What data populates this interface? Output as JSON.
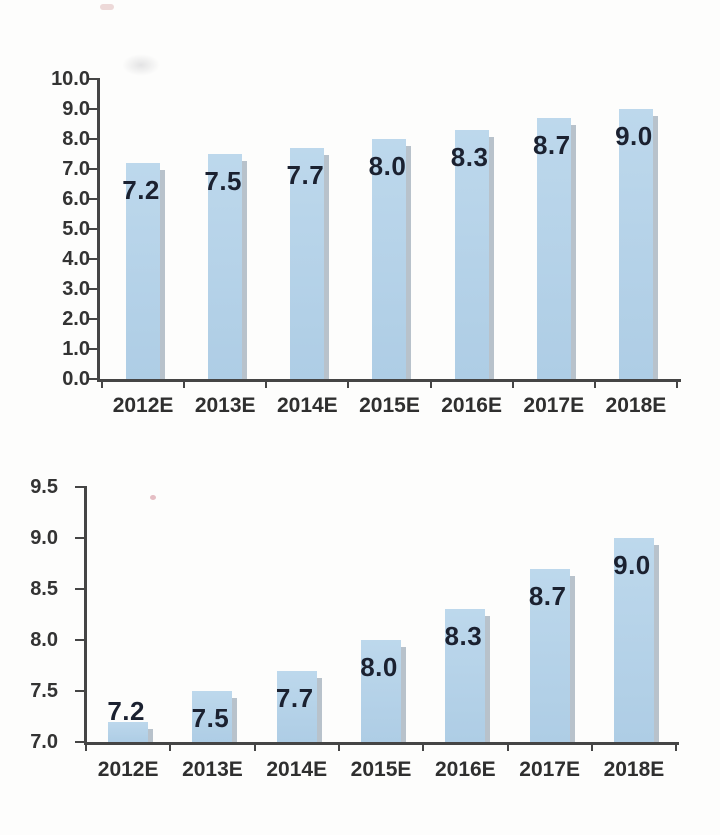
{
  "page": {
    "background": "#fdfdfc"
  },
  "chart_data": [
    {
      "type": "bar",
      "title": "",
      "categories": [
        "2012E",
        "2013E",
        "2014E",
        "2015E",
        "2016E",
        "2017E",
        "2018E"
      ],
      "values": [
        7.2,
        7.5,
        7.7,
        8.0,
        8.3,
        8.7,
        9.0
      ],
      "data_labels": [
        "7.2",
        "7.5",
        "7.7",
        "8.0",
        "8.3",
        "8.7",
        "9.0"
      ],
      "xlabel": "",
      "ylabel": "",
      "ylim": [
        0.0,
        10.0
      ],
      "ytick_step": 1.0,
      "ytick_labels": [
        "10.0",
        "9.0",
        "8.0",
        "7.0",
        "6.0",
        "5.0",
        "4.0",
        "3.0",
        "2.0",
        "1.0",
        "0.0"
      ],
      "grid": false,
      "legend": "none",
      "bar_color_top": "#bdd8ec",
      "bar_color_bottom": "#aecde5",
      "bar_shadow_color": "rgba(128,146,162,0.55)",
      "axis_color": "#454545",
      "tick_label_color": "#333333",
      "xtick_label_color": "#2f2f2f",
      "data_label_color": "#1b2130"
    },
    {
      "type": "bar",
      "title": "",
      "categories": [
        "2012E",
        "2013E",
        "2014E",
        "2015E",
        "2016E",
        "2017E",
        "2018E"
      ],
      "values": [
        7.2,
        7.5,
        7.7,
        8.0,
        8.3,
        8.7,
        9.0
      ],
      "data_labels": [
        "7.2",
        "7.5",
        "7.7",
        "8.0",
        "8.3",
        "8.7",
        "9.0"
      ],
      "xlabel": "",
      "ylabel": "",
      "ylim": [
        7.0,
        9.5
      ],
      "ytick_step": 0.5,
      "ytick_labels": [
        "9.5",
        "9.0",
        "8.5",
        "8.0",
        "7.5",
        "7.0"
      ],
      "grid": false,
      "legend": "none",
      "bar_color_top": "#bdd8ec",
      "bar_color_bottom": "#aecde5",
      "bar_shadow_color": "rgba(128,146,162,0.55)",
      "axis_color": "#454545",
      "tick_label_color": "#333333",
      "xtick_label_color": "#2f2f2f",
      "data_label_color": "#1b2130"
    }
  ]
}
